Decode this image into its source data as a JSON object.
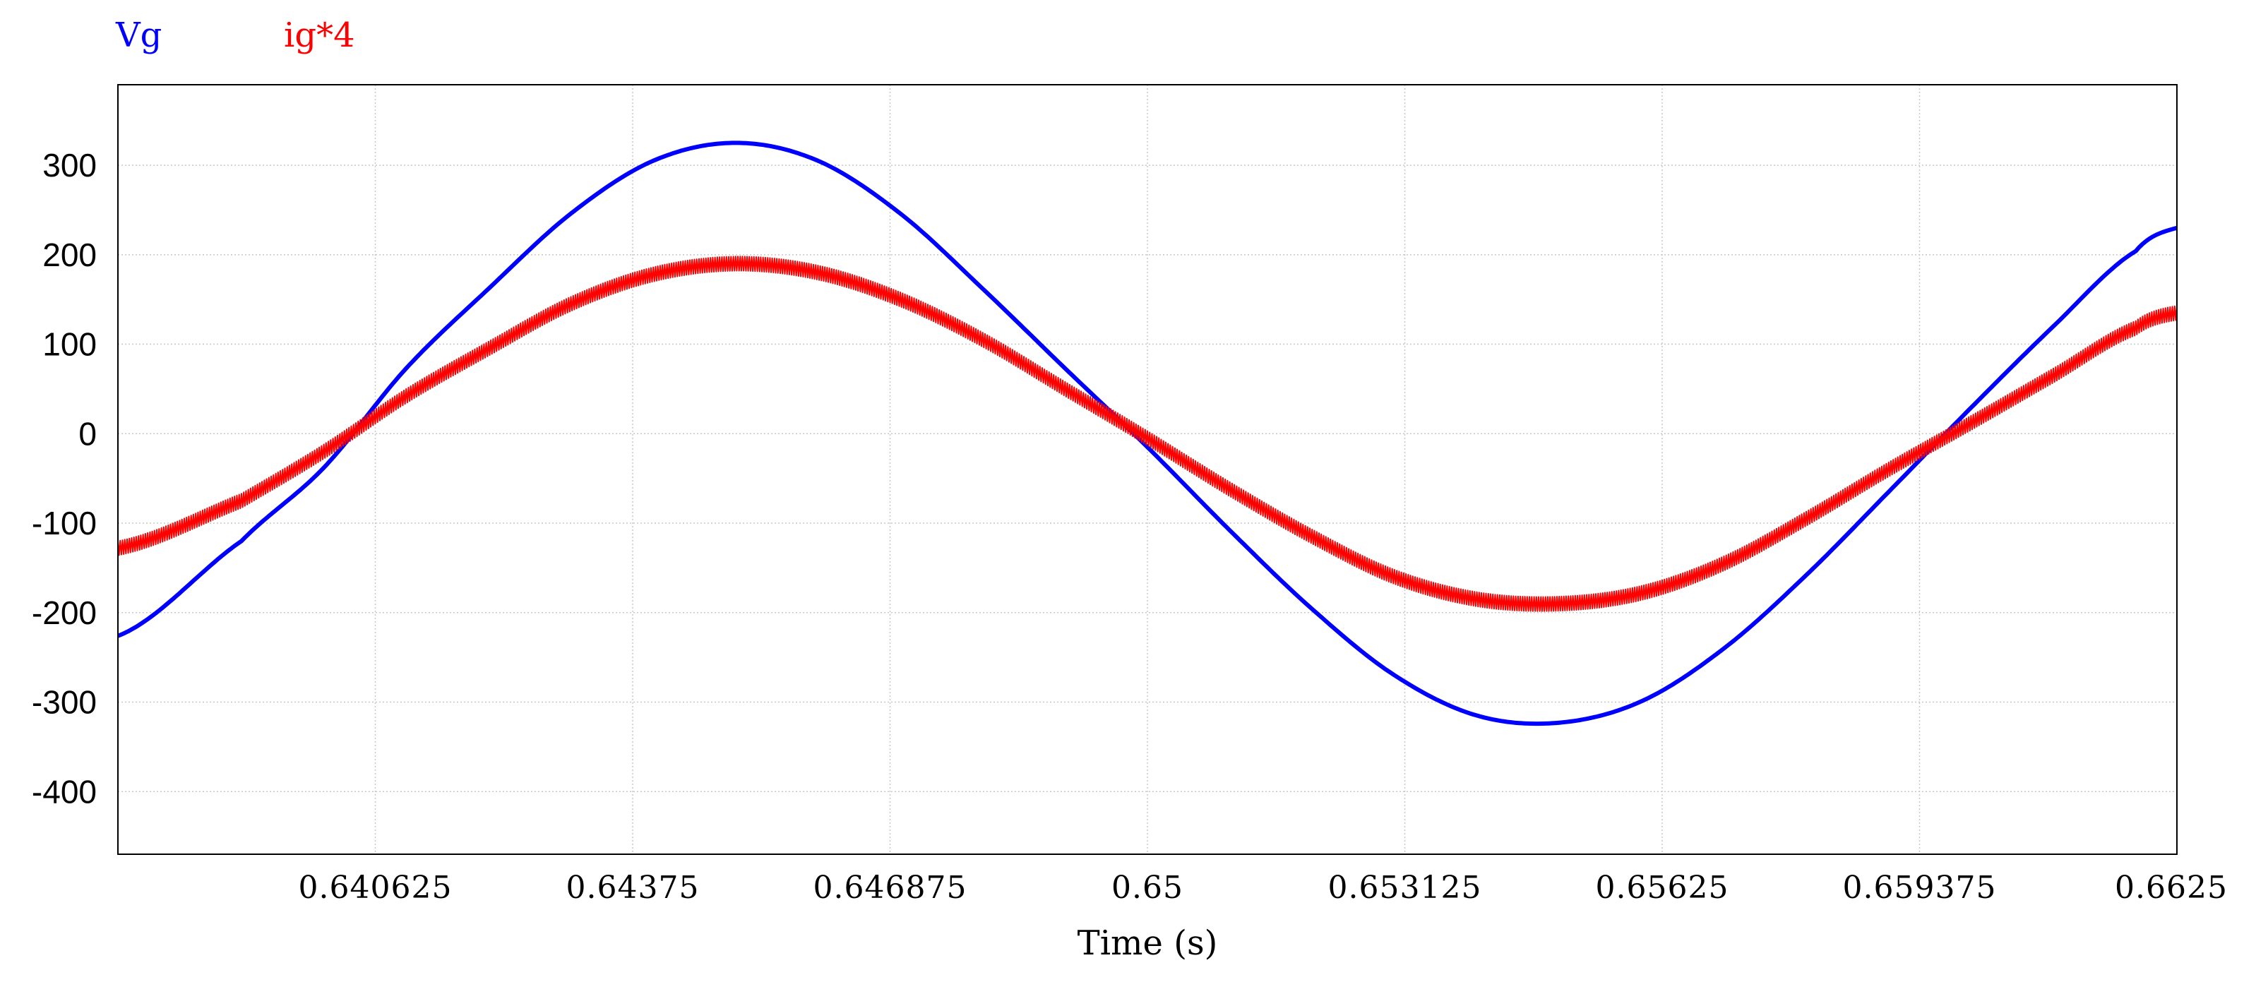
{
  "chart_data": {
    "type": "line",
    "title": "",
    "xlabel": "Time (s)",
    "ylabel": "",
    "xlim": [
      0.6375,
      0.6625
    ],
    "ylim": [
      -470,
      390
    ],
    "grid": true,
    "legend_placement": "top-left",
    "x_ticks": [
      0.640625,
      0.64375,
      0.646875,
      0.65,
      0.653125,
      0.65625,
      0.659375,
      0.6625
    ],
    "x_tick_labels": [
      "0.640625",
      "0.64375",
      "0.646875",
      "0.65",
      "0.653125",
      "0.65625",
      "0.659375",
      "0.6625"
    ],
    "y_ticks": [
      300,
      200,
      100,
      0,
      -100,
      -200,
      -300,
      -400
    ],
    "y_tick_labels": [
      "300",
      "200",
      "100",
      "0",
      "-100",
      "-200",
      "-300",
      "-400"
    ],
    "series": [
      {
        "name": "Vg",
        "color": "#0000ff",
        "x": [
          0.6375,
          0.639,
          0.64,
          0.641,
          0.642,
          0.643,
          0.644,
          0.645,
          0.646,
          0.647,
          0.648,
          0.649,
          0.65,
          0.651,
          0.652,
          0.653,
          0.654,
          0.655,
          0.656,
          0.657,
          0.658,
          0.659,
          0.66,
          0.661,
          0.662,
          0.6625
        ],
        "values": [
          -226,
          -120,
          -38,
          73,
          162,
          246,
          305,
          325,
          305,
          246,
          162,
          73,
          -15,
          -108,
          -196,
          -270,
          -315,
          -323,
          -299,
          -240,
          -158,
          -65,
          29,
          120,
          204,
          230
        ]
      },
      {
        "name": "ig*4",
        "color": "#ff0000",
        "x": [
          0.6375,
          0.639,
          0.64,
          0.641,
          0.642,
          0.643,
          0.644,
          0.645,
          0.646,
          0.647,
          0.648,
          0.649,
          0.65,
          0.651,
          0.652,
          0.653,
          0.654,
          0.655,
          0.656,
          0.657,
          0.658,
          0.659,
          0.66,
          0.661,
          0.662,
          0.6625
        ],
        "values": [
          -128,
          -75,
          -20,
          42,
          95,
          145,
          178,
          190,
          180,
          150,
          105,
          50,
          -5,
          -62,
          -115,
          -160,
          -185,
          -190,
          -178,
          -145,
          -95,
          -40,
          12,
          65,
          118,
          135
        ]
      }
    ]
  }
}
